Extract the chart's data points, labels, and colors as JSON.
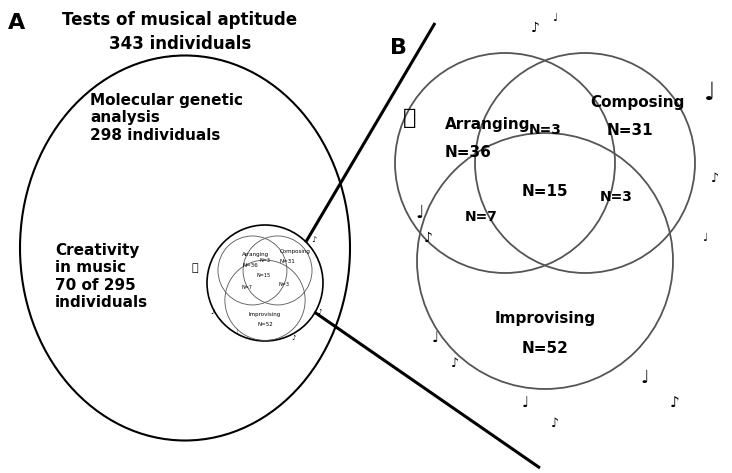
{
  "title_A_line1": "Tests of musical aptitude",
  "title_A_line2": "343 individuals",
  "label_A": "A",
  "label_B": "B",
  "bg_color": "#ffffff",
  "fontsize_title": 12,
  "fontsize_label": 16,
  "fontsize_body": 11,
  "fontsize_venn_large": 11,
  "fontsize_venn_small": 10,
  "fontsize_notes": 14,
  "fontsize_thumb": 4
}
